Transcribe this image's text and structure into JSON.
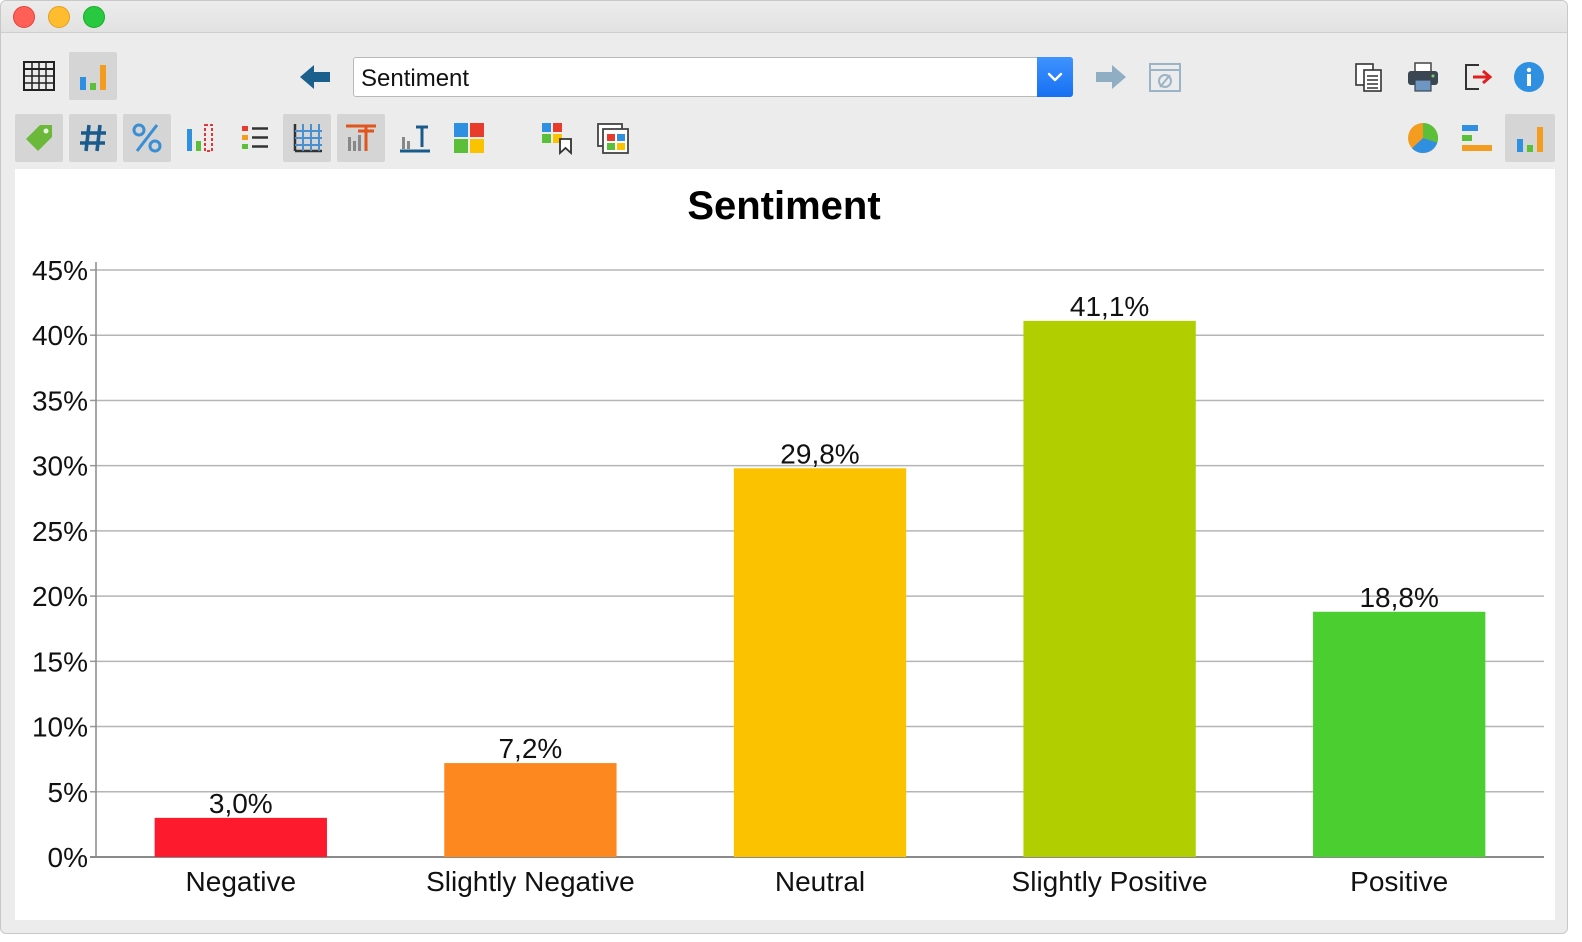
{
  "window": {
    "traffic_lights": [
      "close",
      "minimize",
      "zoom"
    ]
  },
  "toolbar_top": {
    "left_buttons": [
      {
        "icon": "table-view-icon",
        "selected": false
      },
      {
        "icon": "chart-view-icon",
        "selected": true
      }
    ],
    "nav_back_icon": "arrow-left-icon",
    "variable_select": {
      "value": "Sentiment"
    },
    "nav_forward_icon": "arrow-right-icon",
    "filter_icon": "filter-off-icon",
    "right_buttons": [
      "copy-icon",
      "print-icon",
      "export-icon",
      "info-icon"
    ]
  },
  "toolbar_second": {
    "buttons": [
      {
        "icon": "tag-icon",
        "selected": true
      },
      {
        "icon": "hash-icon",
        "selected": true
      },
      {
        "icon": "percent-icon",
        "selected": true
      },
      {
        "icon": "missing-values-icon",
        "selected": false
      },
      {
        "icon": "legend-list-icon",
        "selected": false
      },
      {
        "icon": "gridlines-icon",
        "selected": true
      },
      {
        "icon": "chart-title-icon",
        "selected": true
      },
      {
        "icon": "axis-title-icon",
        "selected": false
      },
      {
        "icon": "color-tiles-icon",
        "selected": false
      },
      {
        "icon": "color-scheme-icon",
        "selected": false
      },
      {
        "icon": "multiple-windows-icon",
        "selected": false
      }
    ],
    "chart_type_buttons": [
      {
        "icon": "pie-chart-icon",
        "selected": false
      },
      {
        "icon": "horizontal-bar-chart-icon",
        "selected": false
      },
      {
        "icon": "vertical-bar-chart-icon",
        "selected": true
      }
    ]
  },
  "chart_data": {
    "type": "bar",
    "title": "Sentiment",
    "xlabel": "",
    "ylabel": "",
    "categories": [
      "Negative",
      "Slightly Negative",
      "Neutral",
      "Slightly Positive",
      "Positive"
    ],
    "values": [
      3.0,
      7.2,
      29.8,
      41.1,
      18.8
    ],
    "value_labels": [
      "3,0%",
      "7,2%",
      "29,8%",
      "41,1%",
      "18,8%"
    ],
    "colors": [
      "#fc1a2c",
      "#fd8820",
      "#fbc200",
      "#b0ce00",
      "#4bce30"
    ],
    "ylim": [
      0,
      45
    ],
    "yticks": [
      0,
      5,
      10,
      15,
      20,
      25,
      30,
      35,
      40,
      45
    ],
    "ytick_labels": [
      "0%",
      "5%",
      "10%",
      "15%",
      "20%",
      "25%",
      "30%",
      "35%",
      "40%",
      "45%"
    ],
    "grid": true,
    "legend": "none"
  }
}
